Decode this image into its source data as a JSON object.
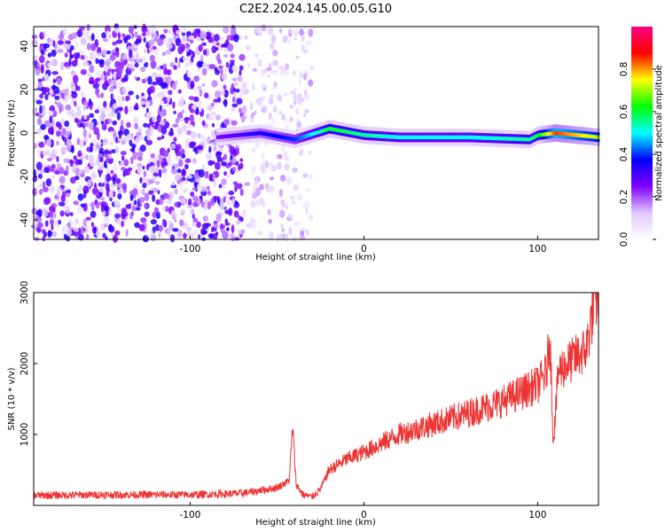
{
  "title": "C2E2.2024.145.00.05.G10",
  "chart_data": [
    {
      "type": "heatmap",
      "xlabel": "Height of straight line (km)",
      "ylabel": "Frequency (Hz)",
      "xlim": [
        -190,
        135
      ],
      "ylim": [
        -49,
        49
      ],
      "xticks": [
        -100,
        0,
        100
      ],
      "yticks": [
        -40,
        -20,
        0,
        20,
        40
      ],
      "colorbar": {
        "label": "Normalized spectral amplitude",
        "range": [
          0,
          1
        ],
        "ticks": [
          "0.0",
          "0.2",
          "0.4",
          "0.6",
          "0.8"
        ],
        "colormap": [
          "#ffffff",
          "#e0c8ff",
          "#8000ff",
          "#0000ff",
          "#00ffff",
          "#00ff00",
          "#ffff00",
          "#ff0000",
          "#ff0080"
        ]
      },
      "signal_track": {
        "x": [
          -85,
          -60,
          -40,
          -20,
          0,
          20,
          60,
          95,
          100,
          110,
          135
        ],
        "frequency": [
          -2,
          0,
          -3,
          2,
          -1,
          -2,
          -2,
          -3,
          -1,
          0,
          -2
        ],
        "amplitude": [
          0.25,
          0.35,
          0.4,
          0.6,
          0.55,
          0.5,
          0.5,
          0.55,
          0.6,
          0.85,
          0.7
        ]
      },
      "noise_region_x": [
        -190,
        -30
      ]
    },
    {
      "type": "line",
      "xlabel": "Height of straight line (km)",
      "ylabel": "SNR (10 * v/v)",
      "xlim": [
        -190,
        135
      ],
      "ylim": [
        0,
        3000
      ],
      "xticks": [
        -100,
        0,
        100
      ],
      "yticks": [
        1000,
        2000,
        3000
      ],
      "color": "#ee3333",
      "x": [
        -190,
        -150,
        -100,
        -70,
        -50,
        -43,
        -41,
        -39,
        -35,
        -30,
        -25,
        -20,
        -10,
        0,
        20,
        40,
        60,
        80,
        100,
        105,
        107,
        109,
        112,
        120,
        128,
        130,
        133,
        135
      ],
      "y": [
        140,
        150,
        150,
        170,
        250,
        350,
        1100,
        300,
        150,
        120,
        230,
        500,
        650,
        750,
        1000,
        1150,
        1300,
        1470,
        1700,
        1870,
        2400,
        900,
        1900,
        2050,
        2200,
        2500,
        2900,
        3000
      ]
    }
  ]
}
